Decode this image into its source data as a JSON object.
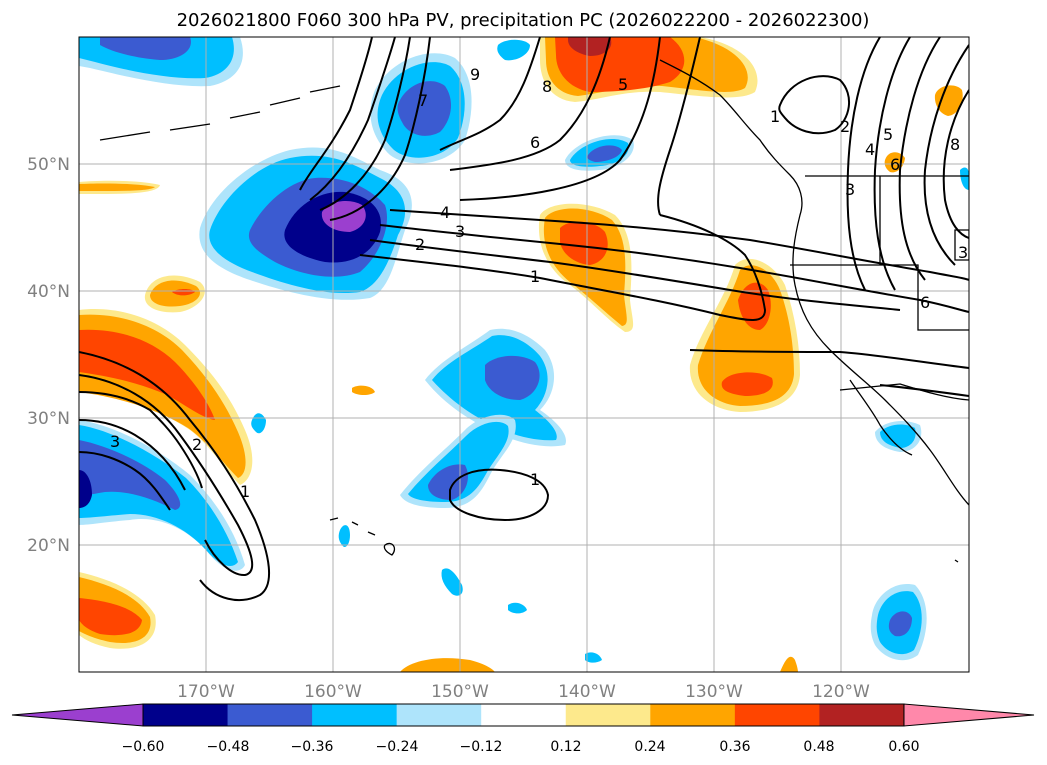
{
  "title": "2026021800 F060 300 hPa PV, precipitation PC (2026022200 - 2026022300)",
  "lat_ticks": [
    "20°N",
    "30°N",
    "40°N",
    "50°N"
  ],
  "lon_ticks": [
    "170°W",
    "160°W",
    "150°W",
    "140°W",
    "130°W",
    "120°W"
  ],
  "colorbar": {
    "tick_labels": [
      "−0.60",
      "−0.48",
      "−0.36",
      "−0.24",
      "−0.12",
      "0.12",
      "0.24",
      "0.36",
      "0.48",
      "0.60"
    ],
    "colors": [
      "#9b3fcf",
      "#00008b",
      "#3b5bd1",
      "#00bfff",
      "#aee4fb",
      "#ffffff",
      "#fde98c",
      "#ffa500",
      "#ff4500",
      "#b22222",
      "#ff88aa"
    ]
  },
  "contour_labels": [
    "9",
    "8",
    "7",
    "6",
    "5",
    "4",
    "3",
    "2",
    "1",
    "3",
    "2",
    "1",
    "1",
    "1",
    "2",
    "3",
    "4",
    "5",
    "6",
    "8",
    "6",
    "3"
  ],
  "map_extent": {
    "lon_min": -180,
    "lon_max": -110,
    "lat_min": 10,
    "lat_max": 60
  }
}
